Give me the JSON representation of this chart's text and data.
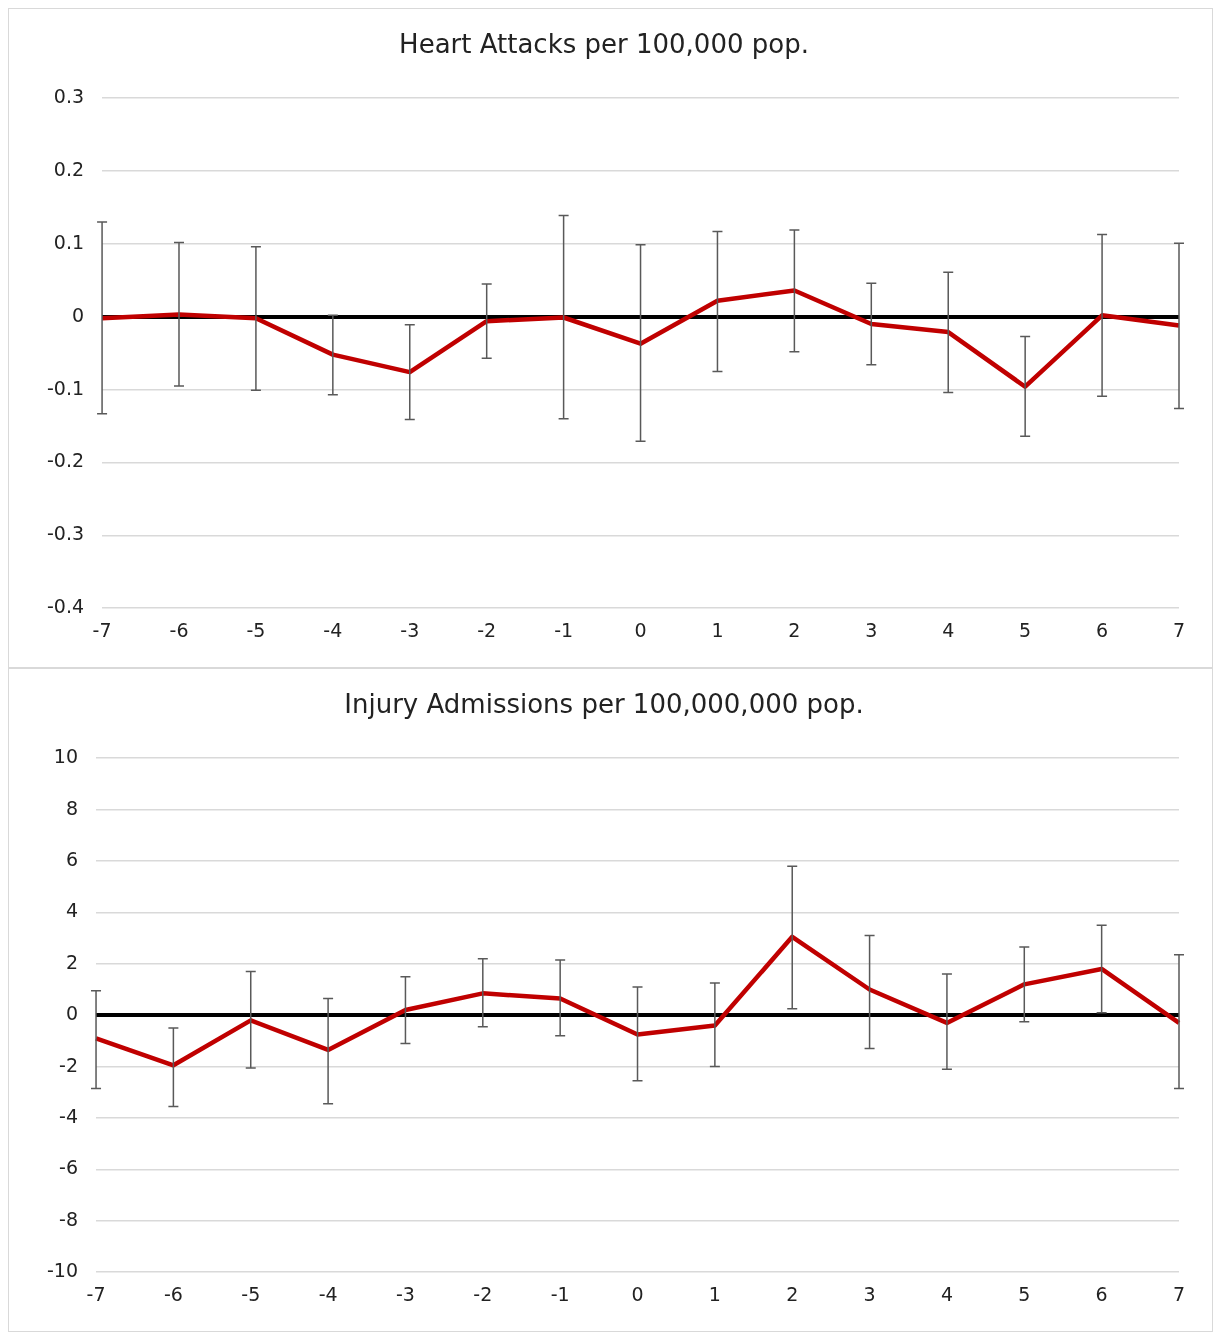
{
  "chart_data": [
    {
      "type": "line",
      "title": "Heart Attacks per 100,000 pop.",
      "categories": [
        "-7",
        "-6",
        "-5",
        "-4",
        "-3",
        "-2",
        "-1",
        "0",
        "1",
        "2",
        "3",
        "4",
        "5",
        "6",
        "7"
      ],
      "ylim": [
        -0.4,
        0.3
      ],
      "yticks": [
        -0.4,
        -0.3,
        -0.2,
        -0.1,
        0,
        0.1,
        0.2,
        0.3
      ],
      "grid": "y",
      "legend": false,
      "marker": "none",
      "series": [
        {
          "color": "#c00000",
          "values": [
            -0.002,
            0.003,
            -0.002,
            -0.052,
            -0.076,
            -0.006,
            -0.001,
            -0.037,
            0.022,
            0.036,
            -0.01,
            -0.021,
            -0.096,
            0.002,
            -0.012
          ],
          "errors": [
            [
              -0.133,
              0.13
            ],
            [
              -0.095,
              0.102
            ],
            [
              -0.101,
              0.096
            ],
            [
              -0.107,
              0.002
            ],
            [
              -0.141,
              -0.011
            ],
            [
              -0.057,
              0.045
            ],
            [
              -0.14,
              0.139
            ],
            [
              -0.171,
              0.099
            ],
            [
              -0.075,
              0.117
            ],
            [
              -0.048,
              0.119
            ],
            [
              -0.066,
              0.046
            ],
            [
              -0.104,
              0.061
            ],
            [
              -0.164,
              -0.027
            ],
            [
              -0.109,
              0.113
            ],
            [
              -0.126,
              0.101
            ]
          ]
        }
      ]
    },
    {
      "type": "line",
      "title": "Injury Admissions per 100,000,000 pop.",
      "categories": [
        "-7",
        "-6",
        "-5",
        "-4",
        "-3",
        "-2",
        "-1",
        "0",
        "1",
        "2",
        "3",
        "4",
        "5",
        "6",
        "7"
      ],
      "ylim": [
        -10,
        10
      ],
      "yticks": [
        -10,
        -8,
        -6,
        -4,
        -2,
        0,
        2,
        4,
        6,
        8,
        10
      ],
      "grid": "y",
      "legend": false,
      "marker": "none",
      "series": [
        {
          "color": "#c00000",
          "values": [
            -0.9,
            -1.95,
            -0.2,
            -1.35,
            0.2,
            0.85,
            0.65,
            -0.75,
            -0.4,
            3.05,
            1.0,
            -0.3,
            1.2,
            1.8,
            -0.3
          ],
          "errors": [
            [
              -2.85,
              0.95
            ],
            [
              -3.55,
              -0.5
            ],
            [
              -2.05,
              1.7
            ],
            [
              -3.45,
              0.65
            ],
            [
              -1.1,
              1.5
            ],
            [
              -0.45,
              2.2
            ],
            [
              -0.8,
              2.15
            ],
            [
              -2.55,
              1.1
            ],
            [
              -2.0,
              1.25
            ],
            [
              0.25,
              5.8
            ],
            [
              -1.3,
              3.1
            ],
            [
              -2.1,
              1.6
            ],
            [
              -0.25,
              2.65
            ],
            [
              0.1,
              3.5
            ],
            [
              -2.85,
              2.35
            ]
          ]
        }
      ]
    }
  ]
}
